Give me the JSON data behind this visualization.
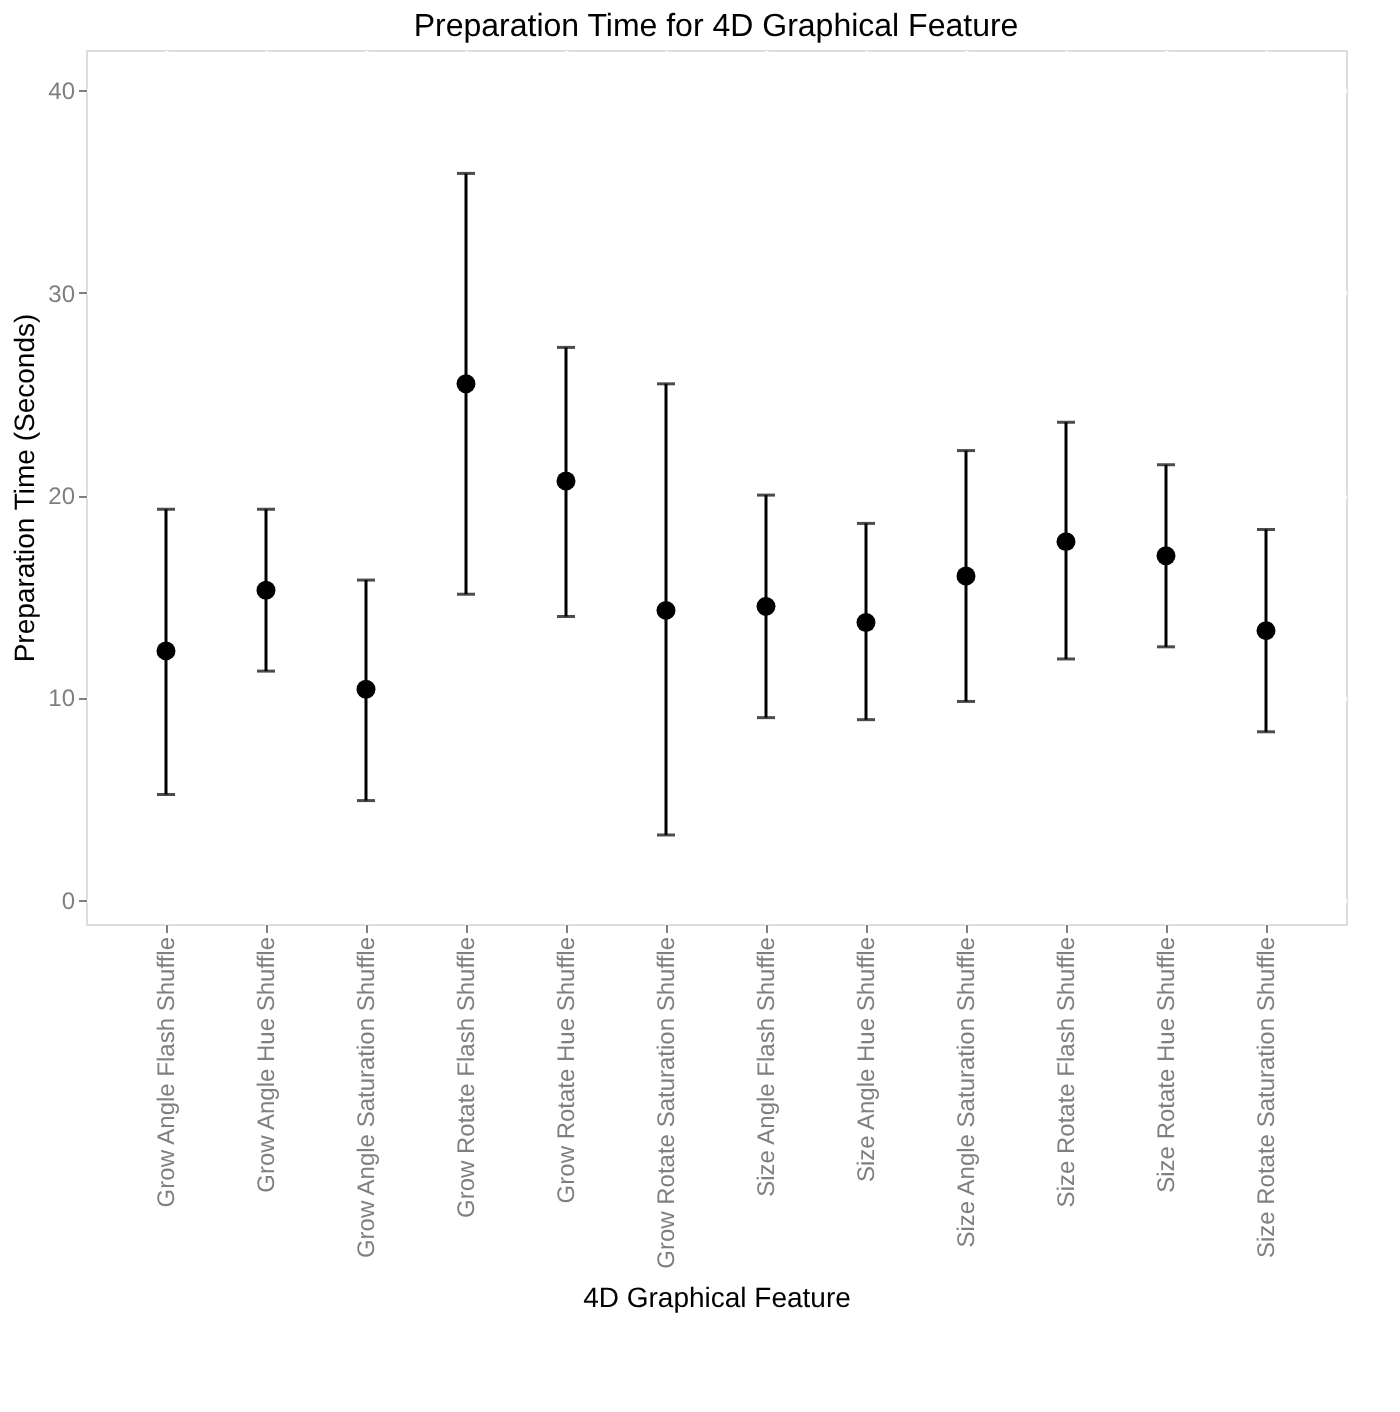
{
  "chart_data": {
    "type": "scatter",
    "title": "Preparation Time for 4D Graphical Feature",
    "xlabel": "4D Graphical Feature",
    "ylabel": "Preparation Time (Seconds)",
    "categories": [
      "Grow Angle Flash Shuffle",
      "Grow Angle Hue Shuffle",
      "Grow Angle Saturation Shuffle",
      "Grow Rotate Flash Shuffle",
      "Grow Rotate Hue Shuffle",
      "Grow Rotate Saturation Shuffle",
      "Size Angle Flash Shuffle",
      "Size Angle Hue Shuffle",
      "Size Angle Saturation Shuffle",
      "Size Rotate Flash Shuffle",
      "Size Rotate Hue Shuffle",
      "Size Rotate Saturation Shuffle"
    ],
    "values": [
      12.3,
      15.3,
      10.4,
      25.5,
      20.7,
      14.3,
      14.5,
      13.7,
      16.0,
      17.7,
      17.0,
      13.3
    ],
    "errors": [
      [
        5.2,
        19.3
      ],
      [
        11.3,
        19.3
      ],
      [
        4.9,
        15.8
      ],
      [
        15.1,
        35.9
      ],
      [
        14.0,
        27.3
      ],
      [
        3.2,
        25.5
      ],
      [
        9.0,
        20.0
      ],
      [
        8.9,
        18.6
      ],
      [
        9.8,
        22.2
      ],
      [
        11.9,
        23.6
      ],
      [
        12.5,
        21.5
      ],
      [
        8.3,
        18.3
      ]
    ],
    "color": "#000000",
    "marker": "circle",
    "ylim": [
      -1.2,
      42
    ],
    "yticks": [
      0,
      10,
      20,
      30,
      40
    ],
    "grid": true
  }
}
